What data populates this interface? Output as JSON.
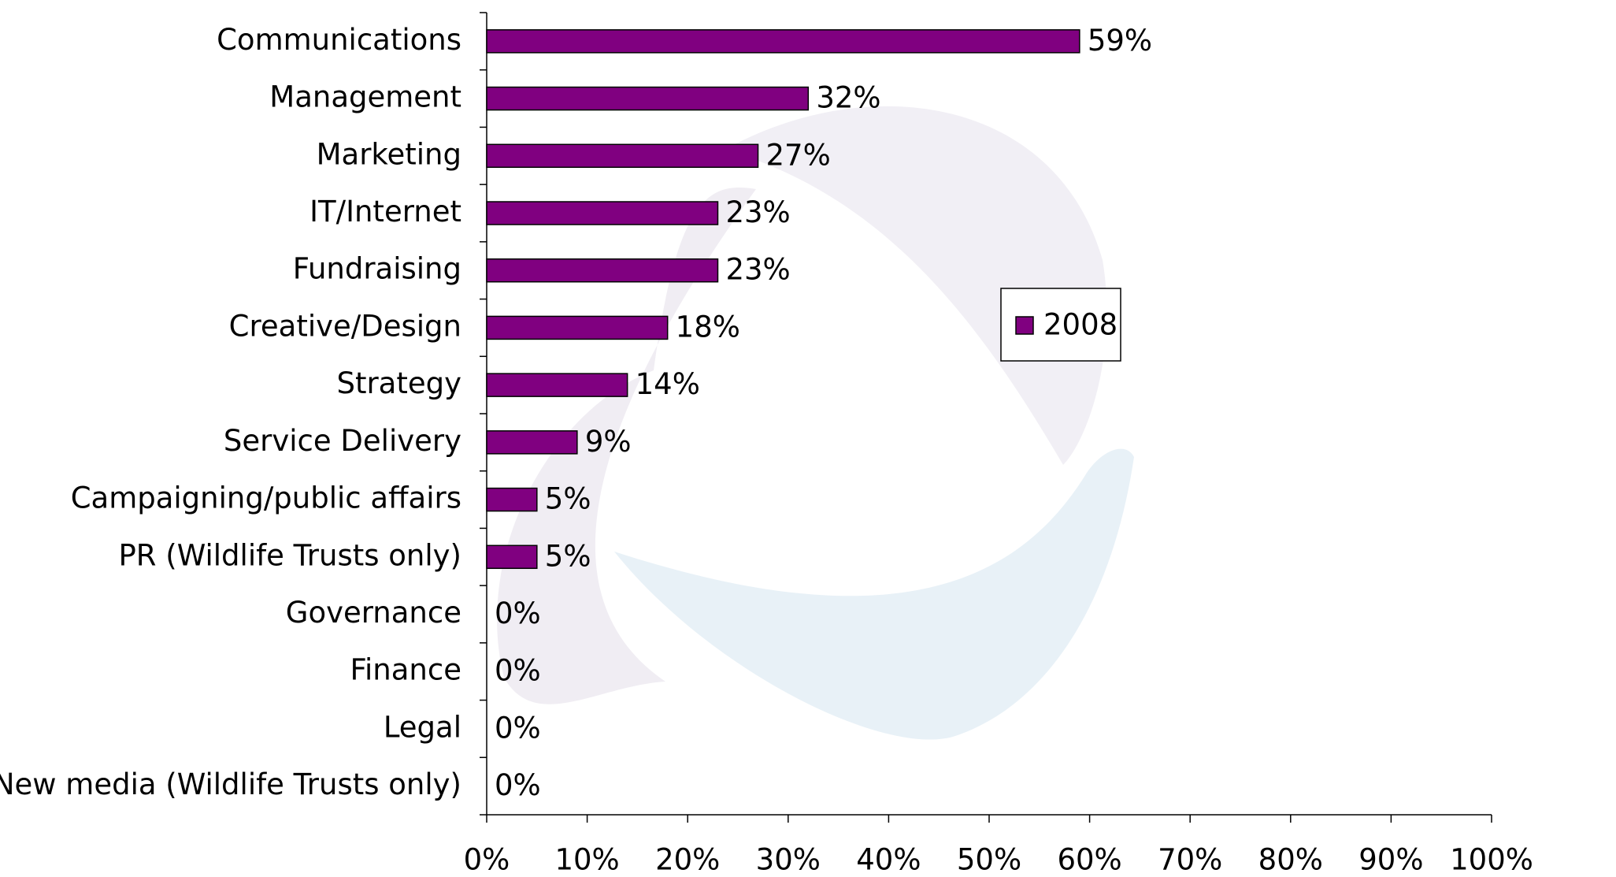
{
  "chart_data": {
    "type": "bar",
    "orientation": "horizontal",
    "categories": [
      "Communications",
      "Management",
      "Marketing",
      "IT/Internet",
      "Fundraising",
      "Creative/Design",
      "Strategy",
      "Service Delivery",
      "Campaigning/public affairs",
      "PR (Wildlife Trusts only)",
      "Governance",
      "Finance",
      "Legal",
      "New media (Wildlife Trusts only)"
    ],
    "series": [
      {
        "name": "2008",
        "color": "#800080",
        "values": [
          59,
          32,
          27,
          23,
          23,
          18,
          14,
          9,
          5,
          5,
          0,
          0,
          0,
          0
        ],
        "value_labels": [
          "59%",
          "32%",
          "27%",
          "23%",
          "23%",
          "18%",
          "14%",
          "9%",
          "5%",
          "5%",
          "0%",
          "0%",
          "0%",
          "0%"
        ]
      }
    ],
    "xlim": [
      0,
      100
    ],
    "xticks": [
      {
        "value": 0,
        "label": "0%"
      },
      {
        "value": 10,
        "label": "10%"
      },
      {
        "value": 20,
        "label": "20%"
      },
      {
        "value": 30,
        "label": "30%"
      },
      {
        "value": 40,
        "label": "40%"
      },
      {
        "value": 50,
        "label": "50%"
      },
      {
        "value": 60,
        "label": "60%"
      },
      {
        "value": 70,
        "label": "70%"
      },
      {
        "value": 80,
        "label": "80%"
      },
      {
        "value": 90,
        "label": "90%"
      },
      {
        "value": 100,
        "label": "100%"
      }
    ],
    "grid": false,
    "legend": "right"
  }
}
